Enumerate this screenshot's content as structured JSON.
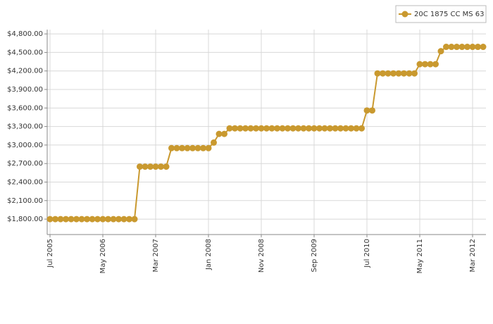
{
  "chart_data": {
    "type": "line",
    "x": [
      "2005-07",
      "2005-08",
      "2005-09",
      "2005-10",
      "2005-11",
      "2005-12",
      "2006-01",
      "2006-02",
      "2006-03",
      "2006-04",
      "2006-05",
      "2006-06",
      "2006-07",
      "2006-08",
      "2006-09",
      "2006-10",
      "2006-11",
      "2006-12",
      "2007-01",
      "2007-02",
      "2007-03",
      "2007-04",
      "2007-05",
      "2007-06",
      "2007-07",
      "2007-08",
      "2007-09",
      "2007-10",
      "2007-11",
      "2007-12",
      "2008-01",
      "2008-02",
      "2008-03",
      "2008-04",
      "2008-05",
      "2008-06",
      "2008-07",
      "2008-08",
      "2008-09",
      "2008-10",
      "2008-11",
      "2008-12",
      "2009-01",
      "2009-02",
      "2009-03",
      "2009-04",
      "2009-05",
      "2009-06",
      "2009-07",
      "2009-08",
      "2009-09",
      "2009-10",
      "2009-11",
      "2009-12",
      "2010-01",
      "2010-02",
      "2010-03",
      "2010-04",
      "2010-05",
      "2010-06",
      "2010-07",
      "2010-08",
      "2010-09",
      "2010-10",
      "2010-11",
      "2010-12",
      "2011-01",
      "2011-02",
      "2011-03",
      "2011-04",
      "2011-05",
      "2011-06",
      "2011-07",
      "2011-08",
      "2011-09",
      "2011-10",
      "2011-11",
      "2011-12",
      "2012-01",
      "2012-02",
      "2012-03",
      "2012-04",
      "2012-05"
    ],
    "series": [
      {
        "name": "20C 1875 CC MS 63",
        "color": "#c9992f",
        "values": [
          1800,
          1800,
          1800,
          1800,
          1800,
          1800,
          1800,
          1800,
          1800,
          1800,
          1800,
          1800,
          1800,
          1800,
          1800,
          1800,
          1800,
          2650,
          2650,
          2650,
          2650,
          2650,
          2650,
          2950,
          2950,
          2950,
          2950,
          2950,
          2950,
          2950,
          2950,
          3040,
          3180,
          3180,
          3270,
          3270,
          3270,
          3270,
          3270,
          3270,
          3270,
          3270,
          3270,
          3270,
          3270,
          3270,
          3270,
          3270,
          3270,
          3270,
          3270,
          3270,
          3270,
          3270,
          3270,
          3270,
          3270,
          3270,
          3270,
          3270,
          3560,
          3560,
          4160,
          4160,
          4160,
          4160,
          4160,
          4160,
          4160,
          4160,
          4310,
          4310,
          4310,
          4310,
          4520,
          4590,
          4590,
          4590,
          4590,
          4590,
          4590,
          4590,
          4590
        ]
      }
    ],
    "xlim": [
      "2005-07",
      "2012-05"
    ],
    "xticks": [
      {
        "value": "2005-07",
        "label": "Jul 2005"
      },
      {
        "value": "2006-05",
        "label": "May 2006"
      },
      {
        "value": "2007-03",
        "label": "Mar 2007"
      },
      {
        "value": "2008-01",
        "label": "Jan 2008"
      },
      {
        "value": "2008-11",
        "label": "Nov 2008"
      },
      {
        "value": "2009-09",
        "label": "Sep 2009"
      },
      {
        "value": "2010-07",
        "label": "Jul 2010"
      },
      {
        "value": "2011-05",
        "label": "May 2011"
      },
      {
        "value": "2012-03",
        "label": "Mar 2012"
      }
    ],
    "ylim": [
      1550,
      4870
    ],
    "yticks": [
      {
        "value": 1800,
        "label": "$1,800.00"
      },
      {
        "value": 2100,
        "label": "$2,100.00"
      },
      {
        "value": 2400,
        "label": "$2,400.00"
      },
      {
        "value": 2700,
        "label": "$2,700.00"
      },
      {
        "value": 3000,
        "label": "$3,000.00"
      },
      {
        "value": 3300,
        "label": "$3,300.00"
      },
      {
        "value": 3600,
        "label": "$3,600.00"
      },
      {
        "value": 3900,
        "label": "$3,900.00"
      },
      {
        "value": 4200,
        "label": "$4,200.00"
      },
      {
        "value": 4500,
        "label": "$4,500.00"
      },
      {
        "value": 4800,
        "label": "$4,800.00"
      }
    ],
    "grid": true,
    "legend": "top-right"
  }
}
